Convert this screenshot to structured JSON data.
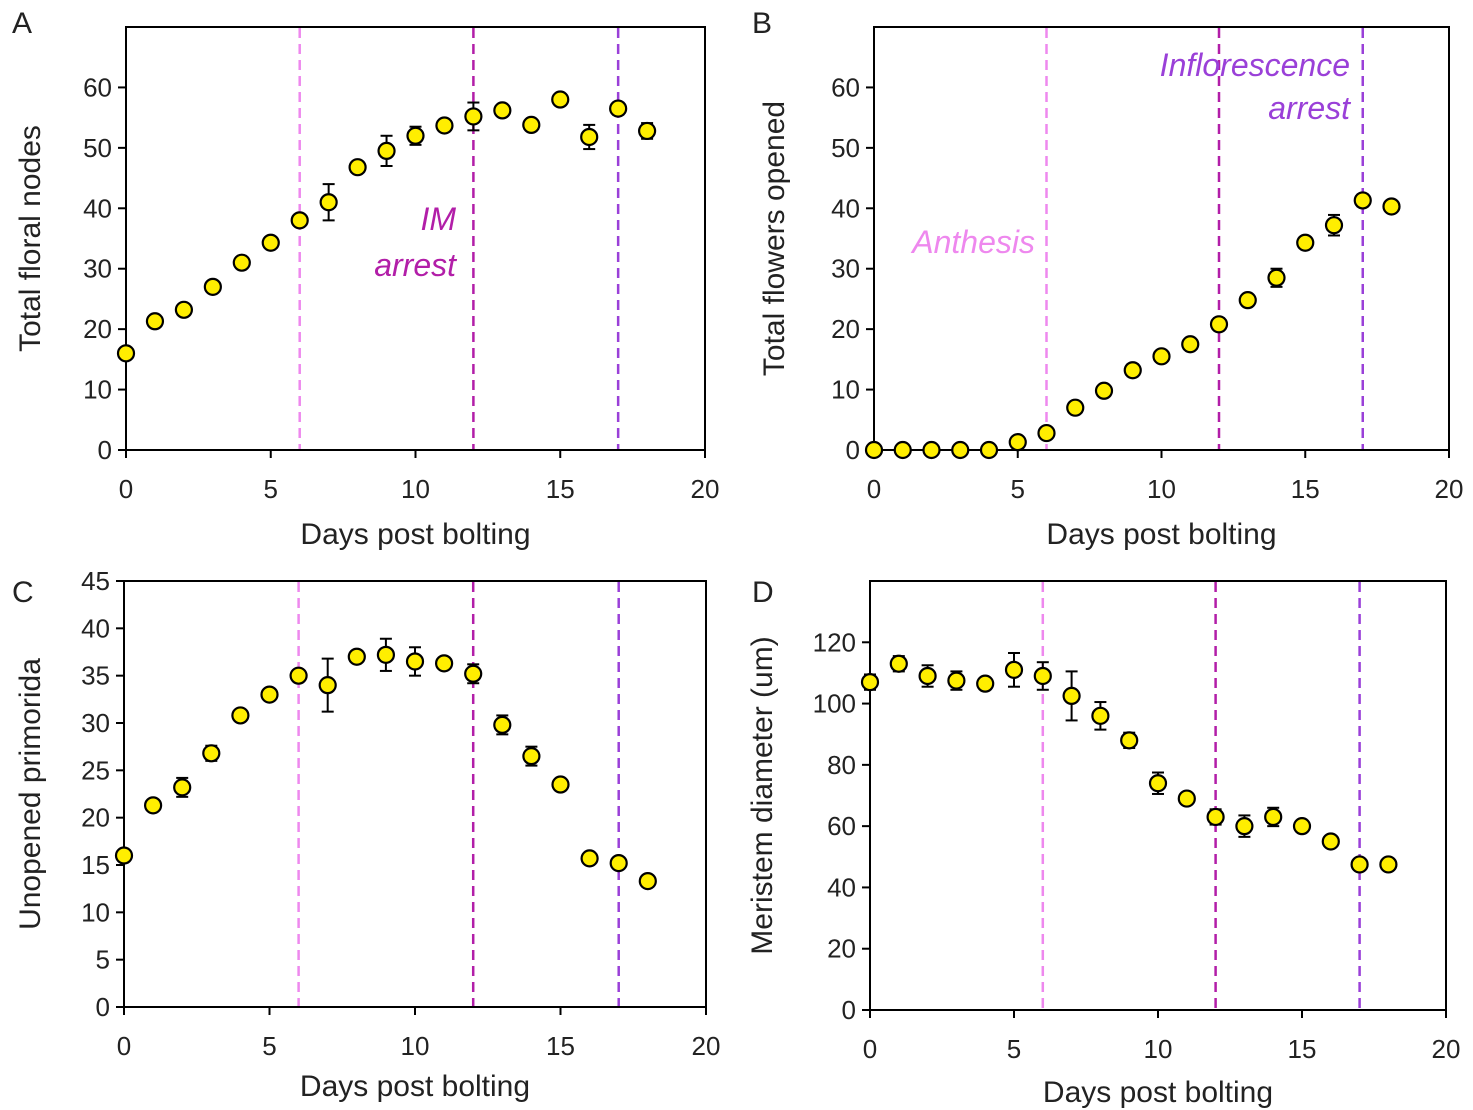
{
  "colors": {
    "marker_fill": "#ffee00",
    "marker_edge": "#000000",
    "anthesis_line": "#ee88ee",
    "im_arrest_line": "#b21ea8",
    "inflorescence_arrest_line": "#9a40d8"
  },
  "chart_data": [
    {
      "panel": "A",
      "type": "scatter",
      "xlabel": "Days post bolting",
      "ylabel": "Total floral nodes",
      "xlim": [
        0,
        20
      ],
      "ylim": [
        0,
        70
      ],
      "xticks": [
        0,
        5,
        10,
        15,
        20
      ],
      "yticks": [
        0,
        10,
        20,
        30,
        40,
        50,
        60
      ],
      "x": [
        0,
        1,
        2,
        3,
        4,
        5,
        6,
        7,
        8,
        9,
        10,
        11,
        12,
        13,
        14,
        15,
        16,
        17,
        18
      ],
      "y": [
        16,
        21.3,
        23.2,
        27,
        31,
        34.3,
        38,
        41,
        46.8,
        49.5,
        52,
        53.7,
        55.2,
        56.2,
        53.8,
        58,
        51.8,
        56.5,
        52.8
      ],
      "err": [
        0.8,
        0.8,
        0.8,
        0.8,
        0.8,
        0.8,
        0.8,
        3,
        0.8,
        2.5,
        1.5,
        1,
        2.3,
        0.8,
        0.8,
        0.8,
        2,
        1,
        1.3
      ],
      "vlines": [
        {
          "x": 6,
          "color": "#ee88ee"
        },
        {
          "x": 12,
          "color": "#b21ea8"
        },
        {
          "x": 17,
          "color": "#9a40d8"
        }
      ],
      "annotations": [
        {
          "lines": [
            "IM",
            "arrest"
          ],
          "color": "#b21ea8"
        }
      ]
    },
    {
      "panel": "B",
      "type": "scatter",
      "xlabel": "Days post bolting",
      "ylabel": "Total flowers opened",
      "xlim": [
        0,
        20
      ],
      "ylim": [
        0,
        70
      ],
      "xticks": [
        0,
        5,
        10,
        15,
        20
      ],
      "yticks": [
        0,
        10,
        20,
        30,
        40,
        50,
        60
      ],
      "x": [
        0,
        1,
        2,
        3,
        4,
        5,
        6,
        7,
        8,
        9,
        10,
        11,
        12,
        13,
        14,
        15,
        16,
        17,
        18
      ],
      "y": [
        0,
        0,
        0,
        0,
        0,
        1.3,
        2.8,
        7,
        9.8,
        13.2,
        15.5,
        17.5,
        20.8,
        24.8,
        28.5,
        34.3,
        37.2,
        41.3,
        40.3
      ],
      "err": [
        0.3,
        0.3,
        0.3,
        0.3,
        0.3,
        0.6,
        0.6,
        0.6,
        0.6,
        1,
        0.6,
        0.6,
        1,
        0.6,
        1.5,
        0.6,
        1.7,
        1,
        0.6
      ],
      "vlines": [
        {
          "x": 6,
          "color": "#ee88ee"
        },
        {
          "x": 12,
          "color": "#b21ea8"
        },
        {
          "x": 17,
          "color": "#9a40d8"
        }
      ],
      "annotations": [
        {
          "lines": [
            "Anthesis"
          ],
          "color": "#ee88ee"
        },
        {
          "lines": [
            "Inflorescence",
            "arrest"
          ],
          "color": "#9a40d8"
        }
      ]
    },
    {
      "panel": "C",
      "type": "scatter",
      "xlabel": "Days post bolting",
      "ylabel": "Unopened primorida",
      "xlim": [
        0,
        20
      ],
      "ylim": [
        0,
        45
      ],
      "xticks": [
        0,
        5,
        10,
        15,
        20
      ],
      "yticks": [
        0,
        5,
        10,
        15,
        20,
        25,
        30,
        35,
        40,
        45
      ],
      "x": [
        0,
        1,
        2,
        3,
        4,
        5,
        6,
        7,
        8,
        9,
        10,
        11,
        12,
        13,
        14,
        15,
        16,
        17,
        18
      ],
      "y": [
        16,
        21.3,
        23.2,
        26.8,
        30.8,
        33,
        35,
        34,
        37,
        37.2,
        36.5,
        36.3,
        35.2,
        29.8,
        26.5,
        23.5,
        15.7,
        15.2,
        13.3
      ],
      "err": [
        0.6,
        0.5,
        1,
        0.8,
        0.5,
        0.5,
        0.5,
        2.8,
        0.6,
        1.7,
        1.5,
        0.6,
        1,
        1,
        1,
        0.6,
        0.6,
        0.5,
        0.6
      ],
      "vlines": [
        {
          "x": 6,
          "color": "#ee88ee"
        },
        {
          "x": 12,
          "color": "#b21ea8"
        },
        {
          "x": 17,
          "color": "#9a40d8"
        }
      ],
      "annotations": []
    },
    {
      "panel": "D",
      "type": "scatter",
      "xlabel": "Days post bolting",
      "ylabel": "Meristem diameter (um)",
      "xlim": [
        0,
        20
      ],
      "ylim": [
        0,
        140
      ],
      "xticks": [
        0,
        5,
        10,
        15,
        20
      ],
      "yticks": [
        0,
        20,
        40,
        60,
        80,
        100,
        120
      ],
      "x": [
        0,
        1,
        2,
        3,
        4,
        5,
        6,
        7,
        8,
        9,
        10,
        11,
        12,
        13,
        14,
        15,
        16,
        17,
        18
      ],
      "y": [
        107,
        113,
        109,
        107.5,
        106.5,
        111,
        109,
        102.5,
        96,
        88,
        74,
        69,
        63,
        60,
        63,
        60,
        55,
        47.5,
        47.5
      ],
      "err": [
        2.5,
        2.5,
        3.5,
        3,
        1.5,
        5.5,
        4.5,
        8,
        4.5,
        2.5,
        3.5,
        1.5,
        2.5,
        3.5,
        3,
        1.5,
        1.5,
        1.5,
        1.5
      ],
      "vlines": [
        {
          "x": 6,
          "color": "#ee88ee"
        },
        {
          "x": 12,
          "color": "#b21ea8"
        },
        {
          "x": 17,
          "color": "#9a40d8"
        }
      ],
      "annotations": []
    }
  ]
}
